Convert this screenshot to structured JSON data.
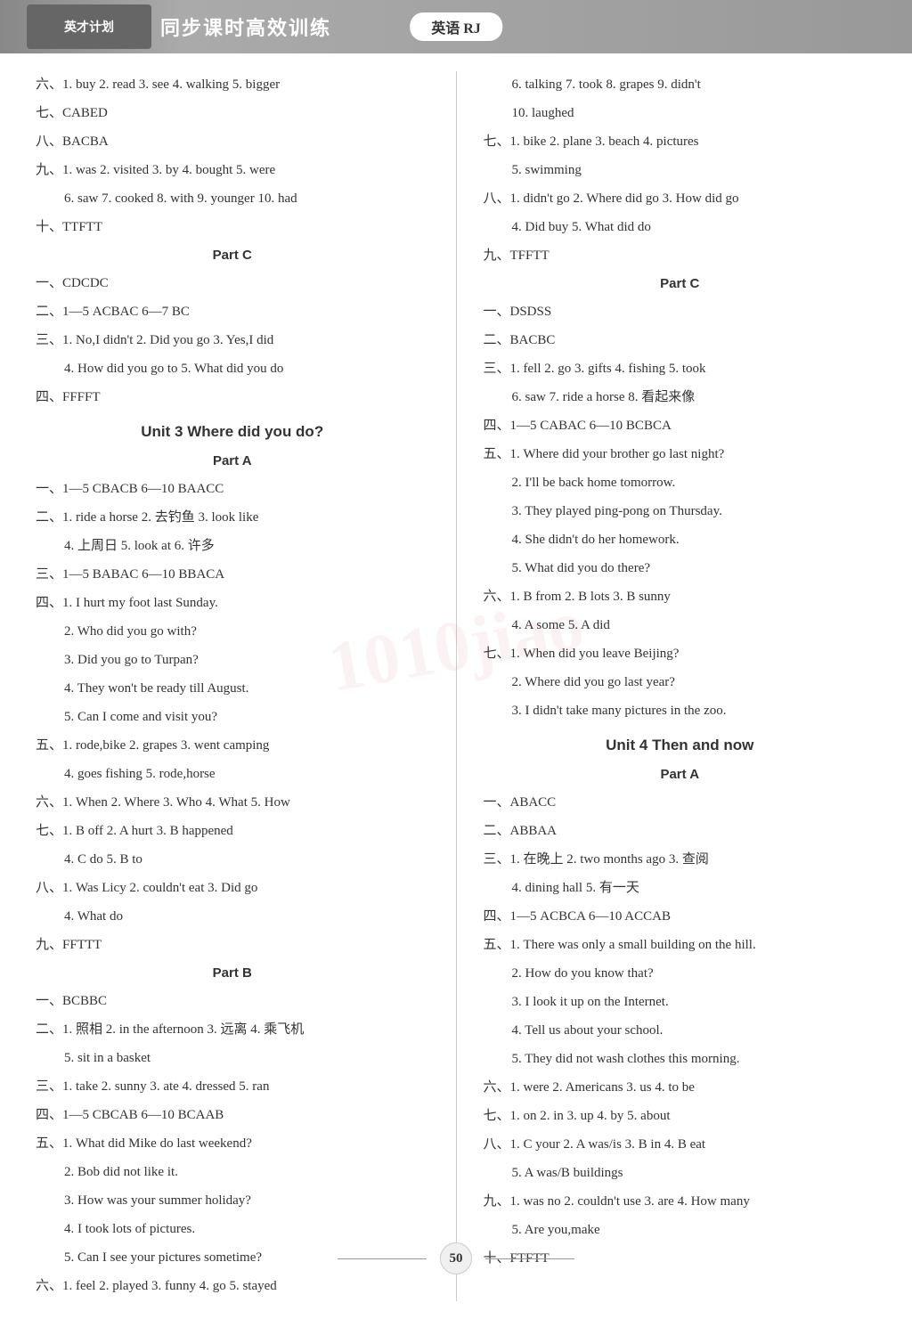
{
  "header": {
    "logo_text": "英才计划",
    "title": "同步课时高效训练",
    "subject": "英语 RJ"
  },
  "watermark": "1010jiao",
  "page_number": "50",
  "left": {
    "l1": "六、1. buy  2. read  3. see  4. walking  5. bigger",
    "l2": "七、CABED",
    "l3": "八、BACBA",
    "l4": "九、1. was  2. visited  3. by  4. bought  5. were",
    "l5": "6. saw  7. cooked  8. with  9. younger  10. had",
    "l6": "十、TTFTT",
    "partC": "Part C",
    "l7": "一、CDCDC",
    "l8": "二、1—5 ACBAC  6—7 BC",
    "l9": "三、1. No,I didn't  2. Did you go  3. Yes,I did",
    "l10": "4. How did you go to  5. What did you do",
    "l11": "四、FFFFT",
    "unit3": "Unit 3  Where did you do?",
    "partA": "Part A",
    "l12": "一、1—5 CBACB  6—10 BAACC",
    "l13": "二、1. ride a horse  2. 去钓鱼  3. look like",
    "l14": "4. 上周日  5. look at  6. 许多",
    "l15": "三、1—5 BABAC  6—10 BBACA",
    "l16": "四、1. I hurt my foot last Sunday.",
    "l17": "2. Who did you go with?",
    "l18": "3. Did you go to Turpan?",
    "l19": "4. They won't be ready till August.",
    "l20": "5. Can I come and visit you?",
    "l21": "五、1. rode,bike  2. grapes  3. went camping",
    "l22": "4. goes fishing  5. rode,horse",
    "l23": "六、1. When  2. Where  3. Who  4. What  5. How",
    "l24": "七、1. B  off  2. A  hurt  3. B  happened",
    "l25": "4. C  do  5. B  to",
    "l26": "八、1. Was Licy  2. couldn't eat  3. Did go",
    "l27": "4. What do",
    "l28": "九、FFTTT",
    "partB": "Part B",
    "l29": "一、BCBBC",
    "l30": "二、1. 照相  2. in the afternoon  3. 远离  4. 乘飞机",
    "l31": "5. sit in a basket",
    "l32": "三、1. take  2. sunny  3. ate  4. dressed  5. ran",
    "l33": "四、1—5 CBCAB  6—10 BCAAB",
    "l34": "五、1. What did Mike do last weekend?",
    "l35": "2. Bob did not like it.",
    "l36": "3. How was your summer holiday?",
    "l37": "4. I took lots of pictures.",
    "l38": "5. Can I see your pictures sometime?",
    "l39": "六、1. feel  2. played  3. funny  4. go  5. stayed"
  },
  "right": {
    "r1": "6. talking  7. took  8. grapes  9. didn't",
    "r2": "10. laughed",
    "r3": "七、1. bike  2. plane  3. beach  4. pictures",
    "r4": "5. swimming",
    "r5": "八、1. didn't go  2. Where did  go  3. How did  go",
    "r6": "4. Did  buy  5. What did  do",
    "r7": "九、TFFTT",
    "partC": "Part C",
    "r8": "一、DSDSS",
    "r9": "二、BACBC",
    "r10": "三、1. fell  2. go  3. gifts  4. fishing  5. took",
    "r11": "6. saw  7. ride a horse  8. 看起来像",
    "r12": "四、1—5 CABAC  6—10 BCBCA",
    "r13": "五、1. Where did your brother go last night?",
    "r14": "2. I'll be back home tomorrow.",
    "r15": "3. They played ping-pong on Thursday.",
    "r16": "4. She didn't do her homework.",
    "r17": "5. What did you do there?",
    "r18": "六、1. B  from  2. B  lots  3. B  sunny",
    "r19": "4. A  some  5. A  did",
    "r20": "七、1. When did you leave Beijing?",
    "r21": "2. Where did you go last year?",
    "r22": "3. I didn't take many pictures in the zoo.",
    "unit4": "Unit 4  Then and now",
    "partA": "Part A",
    "r23": "一、ABACC",
    "r24": "二、ABBAA",
    "r25": "三、1. 在晚上  2. two months ago  3. 查阅",
    "r26": "4. dining hall  5. 有一天",
    "r27": "四、1—5 ACBCA  6—10 ACCAB",
    "r28": "五、1. There was only a small building on the hill.",
    "r29": "2. How do you know that?",
    "r30": "3. I look it up on the Internet.",
    "r31": "4. Tell us about your school.",
    "r32": "5. They did not wash clothes this morning.",
    "r33": "六、1. were  2. Americans  3. us  4. to be",
    "r34": "七、1. on  2. in  3. up  4. by  5. about",
    "r35": "八、1. C  your  2. A  was/is  3. B  in  4. B  eat",
    "r36": "5. A  was/B  buildings",
    "r37": "九、1. was  no  2. couldn't use  3. are  4. How many",
    "r38": "5. Are you,make",
    "r39": "十、FTFTT"
  }
}
